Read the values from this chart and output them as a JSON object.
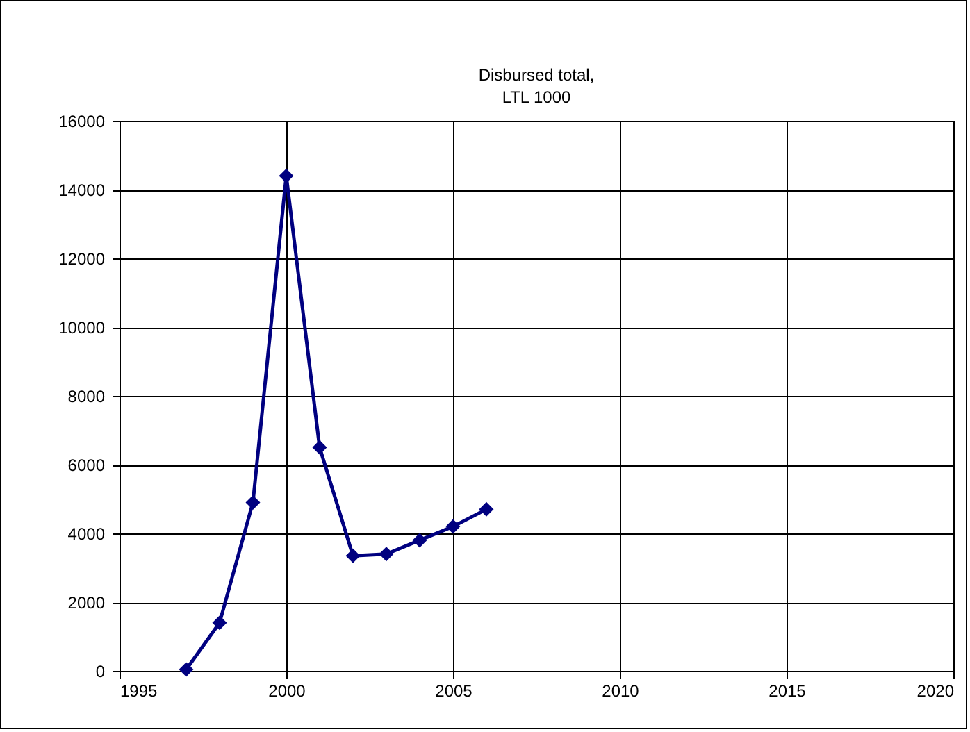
{
  "chart_data": {
    "type": "line",
    "title": "Disbursed total,\nLTL 1000",
    "x": [
      1997,
      1998,
      1999,
      2000,
      2001,
      2002,
      2003,
      2004,
      2005,
      2006
    ],
    "series": [
      {
        "color": "#000080",
        "values": [
          40,
          1400,
          4900,
          14400,
          6500,
          3350,
          3400,
          3800,
          4200,
          4700
        ]
      }
    ],
    "xlim": [
      1995,
      2020
    ],
    "xticks": [
      1995,
      2000,
      2005,
      2010,
      2015,
      2020
    ],
    "ylim": [
      0,
      16000
    ],
    "yticks": [
      0,
      2000,
      4000,
      6000,
      8000,
      10000,
      12000,
      14000,
      16000
    ],
    "grid": true,
    "marker": "diamond",
    "line_style": "solid"
  }
}
